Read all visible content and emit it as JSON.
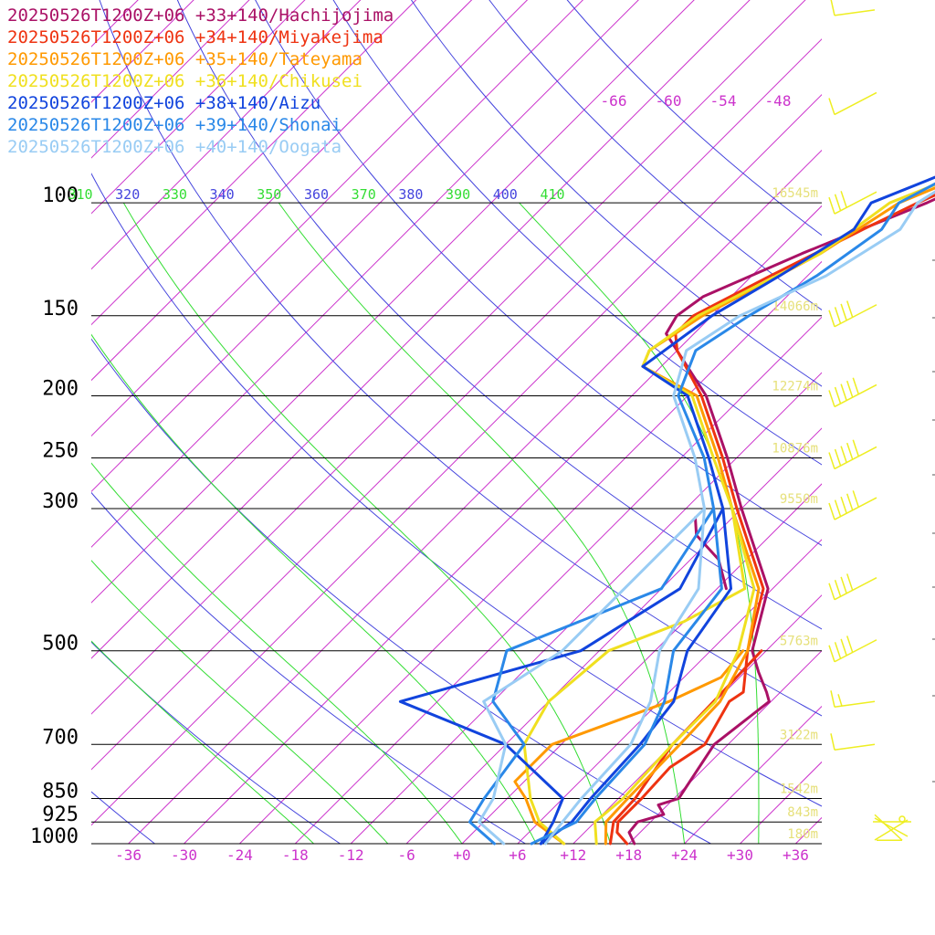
{
  "chart_data": {
    "type": "line",
    "title": "",
    "xlabel": "",
    "ylabel": "",
    "x_axis": {
      "label": "Temperature",
      "tick_labels": [
        "-36",
        "-30",
        "-24",
        "-18",
        "-12",
        "-6",
        "+0",
        "+6",
        "+12",
        "+18",
        "+24",
        "+30",
        "+36"
      ]
    },
    "y_axis": {
      "scale": "log-pressure",
      "tick_labels": [
        "100",
        "150",
        "200",
        "250",
        "300",
        "500",
        "700",
        "850",
        "925",
        "1000"
      ],
      "range": [
        1000,
        100
      ]
    },
    "height_labels": [
      "16545m",
      "14066m",
      "12274m",
      "10876m",
      "9550m",
      "5763m",
      "3122m",
      "1542m",
      "843m",
      "180m"
    ],
    "theta_labels": [
      "310",
      "320",
      "330",
      "340",
      "350",
      "360",
      "370",
      "380",
      "390",
      "400",
      "410"
    ],
    "upper_temp_labels": [
      "-66",
      "-60",
      "-54",
      "-48"
    ],
    "colors": {
      "isotherm": "#cc33cc",
      "dry_adiabat": "#4444dd",
      "moist_adiabat": "#33dd33",
      "isobar": "#000000",
      "wind": "#eeee22",
      "height_label": "#e6e07a",
      "tick_label": "#cc33cc"
    },
    "series": [
      {
        "name": "20250526T1200Z+06 +33+140/Hachijojima",
        "color": "#aa1166",
        "temperature": [
          [
            1000,
            18.6
          ],
          [
            960,
            16.8
          ],
          [
            925,
            16.6
          ],
          [
            900,
            18.6
          ],
          [
            870,
            17
          ],
          [
            850,
            18.5
          ],
          [
            700,
            16.5
          ],
          [
            600,
            17.8
          ],
          [
            580,
            16.5
          ],
          [
            540,
            13.5
          ],
          [
            500,
            10.5
          ],
          [
            400,
            5.5
          ],
          [
            300,
            -6
          ],
          [
            250,
            -13
          ],
          [
            200,
            -22
          ],
          [
            160,
            -33
          ],
          [
            150,
            -33.8
          ],
          [
            140,
            -33
          ],
          [
            120,
            -27
          ],
          [
            100,
            -19
          ],
          [
            80,
            -11
          ],
          [
            70,
            -9
          ]
        ],
        "dewpoint": [
          [
            400,
            1
          ],
          [
            360,
            -3
          ],
          [
            330,
            -8
          ],
          [
            310,
            -10
          ]
        ]
      },
      {
        "name": "20250526T1200Z+06 +34+140/Miyakejima",
        "color": "#ee3311",
        "temperature": [
          [
            1000,
            17.8
          ],
          [
            960,
            15.5
          ],
          [
            925,
            14.5
          ],
          [
            850,
            14.5
          ],
          [
            760,
            14.2
          ],
          [
            700,
            15.5
          ],
          [
            600,
            13.5
          ],
          [
            580,
            14
          ],
          [
            500,
            10
          ],
          [
            400,
            5
          ],
          [
            300,
            -6.5
          ],
          [
            250,
            -13.5
          ],
          [
            200,
            -22.5
          ],
          [
            170,
            -30
          ],
          [
            160,
            -32
          ],
          [
            150,
            -32
          ],
          [
            130,
            -28
          ],
          [
            110,
            -23
          ],
          [
            100,
            -20
          ],
          [
            80,
            -11.5
          ],
          [
            70,
            -9.5
          ]
        ],
        "dewpoint": [
          [
            1000,
            16
          ],
          [
            925,
            14
          ],
          [
            850,
            13.8
          ],
          [
            700,
            12
          ],
          [
            600,
            11.8
          ],
          [
            500,
            11.5
          ]
        ]
      },
      {
        "name": "20250526T1200Z+06 +35+140/Tateyama",
        "color": "#ff9900",
        "temperature": [
          [
            1000,
            15.5
          ],
          [
            925,
            13.2
          ],
          [
            850,
            13
          ],
          [
            700,
            12.8
          ],
          [
            600,
            12.5
          ],
          [
            500,
            10
          ],
          [
            400,
            4.5
          ],
          [
            300,
            -7
          ],
          [
            250,
            -14
          ],
          [
            200,
            -23
          ],
          [
            180,
            -32
          ],
          [
            170,
            -33
          ],
          [
            150,
            -31
          ],
          [
            120,
            -25
          ],
          [
            100,
            -22
          ],
          [
            80,
            -12.5
          ],
          [
            70,
            -10.5
          ]
        ],
        "dewpoint": [
          [
            1000,
            11
          ],
          [
            925,
            5.5
          ],
          [
            850,
            2
          ],
          [
            800,
            -1
          ],
          [
            700,
            -1
          ],
          [
            600,
            7
          ],
          [
            550,
            10
          ],
          [
            500,
            9.5
          ]
        ]
      },
      {
        "name": "20250526T1200Z+06 +36+140/Chikusei",
        "color": "#f0e020",
        "temperature": [
          [
            1000,
            14.5
          ],
          [
            925,
            12
          ],
          [
            850,
            12.5
          ],
          [
            700,
            12
          ],
          [
            600,
            12
          ],
          [
            500,
            9
          ],
          [
            400,
            4
          ],
          [
            300,
            -7
          ],
          [
            250,
            -14.5
          ],
          [
            200,
            -23.5
          ],
          [
            180,
            -32
          ],
          [
            170,
            -33
          ],
          [
            150,
            -31.5
          ],
          [
            120,
            -25
          ],
          [
            100,
            -23
          ],
          [
            80,
            -13
          ],
          [
            70,
            -11
          ]
        ],
        "dewpoint": [
          [
            1000,
            11
          ],
          [
            925,
            6
          ],
          [
            850,
            2.5
          ],
          [
            700,
            -4
          ],
          [
            600,
            -6
          ],
          [
            500,
            -5
          ],
          [
            450,
            0
          ],
          [
            400,
            3
          ],
          [
            300,
            -7
          ]
        ]
      },
      {
        "name": "20250526T1200Z+06 +38+140/Aizu",
        "color": "#1144dd",
        "temperature": [
          [
            1000,
            8.5
          ],
          [
            925,
            9.5
          ],
          [
            850,
            9
          ],
          [
            700,
            8.5
          ],
          [
            600,
            7.5
          ],
          [
            500,
            3.5
          ],
          [
            400,
            1.5
          ],
          [
            300,
            -8
          ],
          [
            250,
            -15
          ],
          [
            200,
            -24
          ],
          [
            180,
            -32
          ],
          [
            150,
            -30
          ],
          [
            130,
            -27
          ],
          [
            110,
            -24
          ],
          [
            100,
            -25
          ],
          [
            80,
            -15
          ],
          [
            70,
            -13
          ]
        ],
        "dewpoint": [
          [
            1000,
            8.5
          ],
          [
            925,
            7.5
          ],
          [
            850,
            6
          ],
          [
            700,
            -6
          ],
          [
            600,
            -22
          ],
          [
            500,
            -8
          ],
          [
            400,
            -4
          ],
          [
            300,
            -8
          ]
        ]
      },
      {
        "name": "20250526T1200Z+06 +39+140/Shonai",
        "color": "#2a88e8",
        "temperature": [
          [
            1000,
            7.5
          ],
          [
            925,
            10
          ],
          [
            850,
            9.5
          ],
          [
            700,
            9
          ],
          [
            600,
            6.5
          ],
          [
            500,
            2
          ],
          [
            400,
            0.5
          ],
          [
            300,
            -9
          ],
          [
            250,
            -15.5
          ],
          [
            200,
            -25
          ],
          [
            170,
            -28
          ],
          [
            150,
            -26
          ],
          [
            130,
            -23
          ],
          [
            110,
            -21
          ],
          [
            100,
            -22
          ],
          [
            80,
            -16
          ],
          [
            70,
            -14
          ]
        ],
        "dewpoint": [
          [
            1000,
            3.5
          ],
          [
            925,
            -1.5
          ],
          [
            850,
            -2.5
          ],
          [
            700,
            -4
          ],
          [
            600,
            -12
          ],
          [
            500,
            -16
          ],
          [
            400,
            -6
          ],
          [
            300,
            -9
          ]
        ]
      },
      {
        "name": "20250526T1200Z+06 +40+140/Oogata",
        "color": "#99ccf4",
        "temperature": [
          [
            1000,
            9
          ],
          [
            925,
            8.5
          ],
          [
            850,
            8
          ],
          [
            700,
            7.5
          ],
          [
            600,
            5
          ],
          [
            500,
            0.5
          ],
          [
            400,
            -2
          ],
          [
            300,
            -10
          ],
          [
            250,
            -16.5
          ],
          [
            200,
            -25.5
          ],
          [
            170,
            -29
          ],
          [
            150,
            -27
          ],
          [
            130,
            -22
          ],
          [
            110,
            -19
          ],
          [
            100,
            -20
          ],
          [
            80,
            -16
          ],
          [
            70,
            -14.5
          ]
        ],
        "dewpoint": [
          [
            1000,
            4.5
          ],
          [
            925,
            -0.5
          ],
          [
            850,
            -1.5
          ],
          [
            700,
            -6
          ],
          [
            600,
            -13
          ],
          [
            500,
            -10
          ],
          [
            400,
            -10
          ],
          [
            300,
            -10
          ]
        ]
      }
    ],
    "wind": [
      {
        "pressure": 1000,
        "sym": "calm-circle"
      },
      {
        "pressure": 925,
        "sym": "light"
      },
      {
        "pressure": 850,
        "sym": "none"
      },
      {
        "pressure": 700,
        "sym": "hook-1"
      },
      {
        "pressure": 600,
        "sym": "hook-2"
      },
      {
        "pressure": 500,
        "sym": "barb-4"
      },
      {
        "pressure": 400,
        "sym": "barb-4"
      },
      {
        "pressure": 300,
        "sym": "barb-5"
      },
      {
        "pressure": 250,
        "sym": "barb-5"
      },
      {
        "pressure": 200,
        "sym": "barb-5"
      },
      {
        "pressure": 150,
        "sym": "barb-4"
      },
      {
        "pressure": 100,
        "sym": "barb-3"
      },
      {
        "pressure": 70,
        "sym": "barb-1"
      },
      {
        "pressure": 50,
        "sym": "hook-1"
      }
    ]
  }
}
